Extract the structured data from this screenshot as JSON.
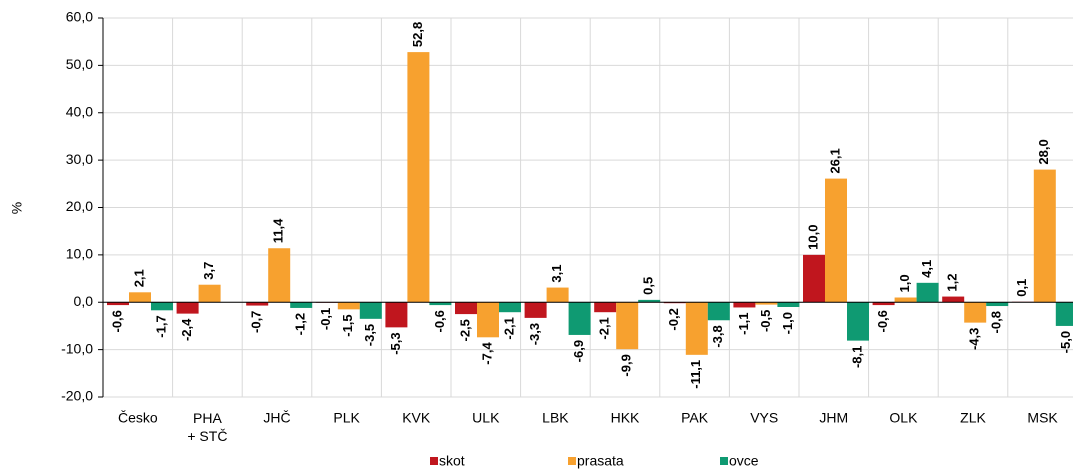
{
  "chart_data": {
    "type": "bar",
    "ylabel": "%",
    "categories": [
      "Česko",
      "PHA + STČ",
      "JHČ",
      "PLK",
      "KVK",
      "ULK",
      "LBK",
      "HKK",
      "PAK",
      "VYS",
      "JHM",
      "OLK",
      "ZLK",
      "MSK"
    ],
    "series": [
      {
        "name": "skot",
        "color": "#c0161e",
        "values": [
          -0.6,
          -2.4,
          -0.7,
          -0.1,
          -5.3,
          -2.5,
          -3.3,
          -2.1,
          -0.2,
          -1.1,
          10.0,
          -0.6,
          1.2,
          0.1
        ],
        "value_labels": [
          "-0,6",
          "-2,4",
          "-0,7",
          "-0,1",
          "-5,3",
          "-2,5",
          "-3,3",
          "-2,1",
          "-0,2",
          "-1,1",
          "10,0",
          "-0,6",
          "1,2",
          "0,1"
        ]
      },
      {
        "name": "prasata",
        "color": "#f7a12f",
        "values": [
          2.1,
          3.7,
          11.4,
          -1.5,
          52.8,
          -7.4,
          3.1,
          -9.9,
          -11.1,
          -0.5,
          26.1,
          1.0,
          -4.3,
          28.0
        ],
        "value_labels": [
          "2,1",
          "3,7",
          "11,4",
          "-1,5",
          "52,8",
          "-7,4",
          "3,1",
          "-9,9",
          "-11,1",
          "-0,5",
          "26,1",
          "1,0",
          "-4,3",
          "28,0"
        ]
      },
      {
        "name": "ovce",
        "color": "#0f9a72",
        "values": [
          -1.7,
          null,
          -1.2,
          -3.5,
          -0.6,
          -2.1,
          -6.9,
          0.5,
          -3.8,
          -1.0,
          -8.1,
          4.1,
          -0.8,
          -5.0
        ],
        "value_labels": [
          "-1,7",
          null,
          "-1,2",
          "-3,5",
          "-0,6",
          "-2,1",
          "-6,9",
          "0,5",
          "-3,8",
          "-1,0",
          "-8,1",
          "4,1",
          "-0,8",
          "-5,0"
        ]
      }
    ],
    "ylim": [
      -20,
      60
    ],
    "yticks": [
      {
        "value": -20,
        "label": "-20,0"
      },
      {
        "value": -10,
        "label": "-10,0"
      },
      {
        "value": 0,
        "label": "0,0"
      },
      {
        "value": 10,
        "label": "10,0"
      },
      {
        "value": 20,
        "label": "20,0"
      },
      {
        "value": 30,
        "label": "30,0"
      },
      {
        "value": 40,
        "label": "40,0"
      },
      {
        "value": 50,
        "label": "50,0"
      },
      {
        "value": 60,
        "label": "60,0"
      }
    ],
    "grid": true,
    "legend": "bottom"
  }
}
